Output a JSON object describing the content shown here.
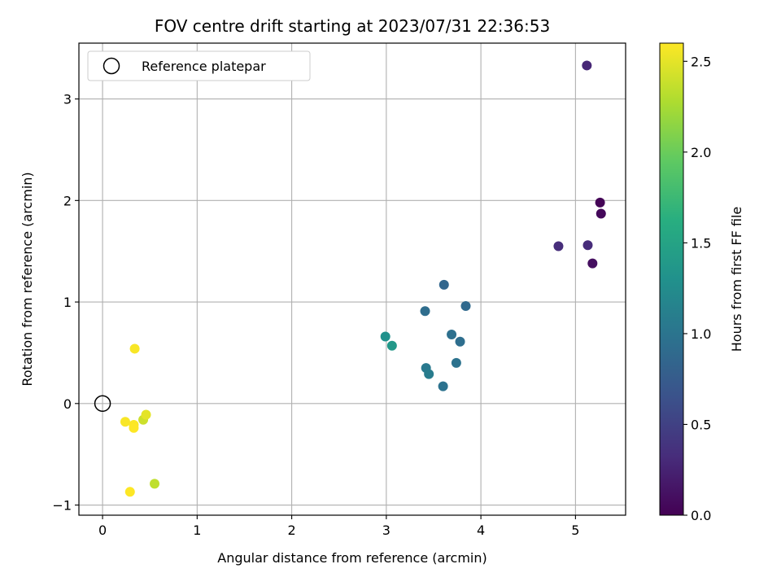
{
  "chart_data": {
    "type": "scatter",
    "title": "FOV centre drift starting at 2023/07/31 22:36:53",
    "xlabel": "Angular distance from reference (arcmin)",
    "ylabel": "Rotation from reference (arcmin)",
    "xlim": [
      -0.25,
      5.53
    ],
    "ylim": [
      -1.1,
      3.55
    ],
    "xticks": [
      0,
      1,
      2,
      3,
      4,
      5
    ],
    "xtick_labels": [
      "0",
      "1",
      "2",
      "3",
      "4",
      "5"
    ],
    "yticks": [
      -1,
      0,
      1,
      2,
      3
    ],
    "ytick_labels": [
      "−1",
      "0",
      "1",
      "2",
      "3"
    ],
    "grid": true,
    "legend": {
      "placement": "top-left",
      "entries": [
        {
          "label": "Reference platepar",
          "marker": "open-circle",
          "color": "#000000"
        }
      ]
    },
    "reference_point": {
      "x": 0,
      "y": 0
    },
    "colorbar": {
      "label": "Hours from first FF file",
      "colormap": "viridis",
      "range": [
        0,
        2.6
      ],
      "ticks": [
        0.0,
        0.5,
        1.0,
        1.5,
        2.0,
        2.5
      ],
      "tick_labels": [
        "0.0",
        "0.5",
        "1.0",
        "1.5",
        "2.0",
        "2.5"
      ]
    },
    "points": [
      {
        "x": 5.26,
        "y": 1.98,
        "c": 0.02
      },
      {
        "x": 5.27,
        "y": 1.87,
        "c": 0.05
      },
      {
        "x": 5.18,
        "y": 1.38,
        "c": 0.1
      },
      {
        "x": 5.12,
        "y": 3.33,
        "c": 0.28
      },
      {
        "x": 5.13,
        "y": 1.56,
        "c": 0.32
      },
      {
        "x": 4.82,
        "y": 1.55,
        "c": 0.33
      },
      {
        "x": 3.61,
        "y": 1.17,
        "c": 0.85
      },
      {
        "x": 3.84,
        "y": 0.96,
        "c": 0.88
      },
      {
        "x": 3.41,
        "y": 0.91,
        "c": 0.92
      },
      {
        "x": 3.78,
        "y": 0.61,
        "c": 0.93
      },
      {
        "x": 3.69,
        "y": 0.68,
        "c": 0.95
      },
      {
        "x": 3.74,
        "y": 0.4,
        "c": 0.97
      },
      {
        "x": 3.6,
        "y": 0.17,
        "c": 0.98
      },
      {
        "x": 3.42,
        "y": 0.35,
        "c": 1.05
      },
      {
        "x": 3.45,
        "y": 0.29,
        "c": 1.08
      },
      {
        "x": 2.99,
        "y": 0.66,
        "c": 1.3
      },
      {
        "x": 3.06,
        "y": 0.57,
        "c": 1.38
      },
      {
        "x": 0.55,
        "y": -0.79,
        "c": 2.35
      },
      {
        "x": 0.43,
        "y": -0.16,
        "c": 2.4
      },
      {
        "x": 0.46,
        "y": -0.11,
        "c": 2.5
      },
      {
        "x": 0.34,
        "y": 0.54,
        "c": 2.58
      },
      {
        "x": 0.24,
        "y": -0.18,
        "c": 2.58
      },
      {
        "x": 0.33,
        "y": -0.21,
        "c": 2.59
      },
      {
        "x": 0.33,
        "y": -0.24,
        "c": 2.6
      },
      {
        "x": 0.29,
        "y": -0.87,
        "c": 2.6
      }
    ]
  }
}
